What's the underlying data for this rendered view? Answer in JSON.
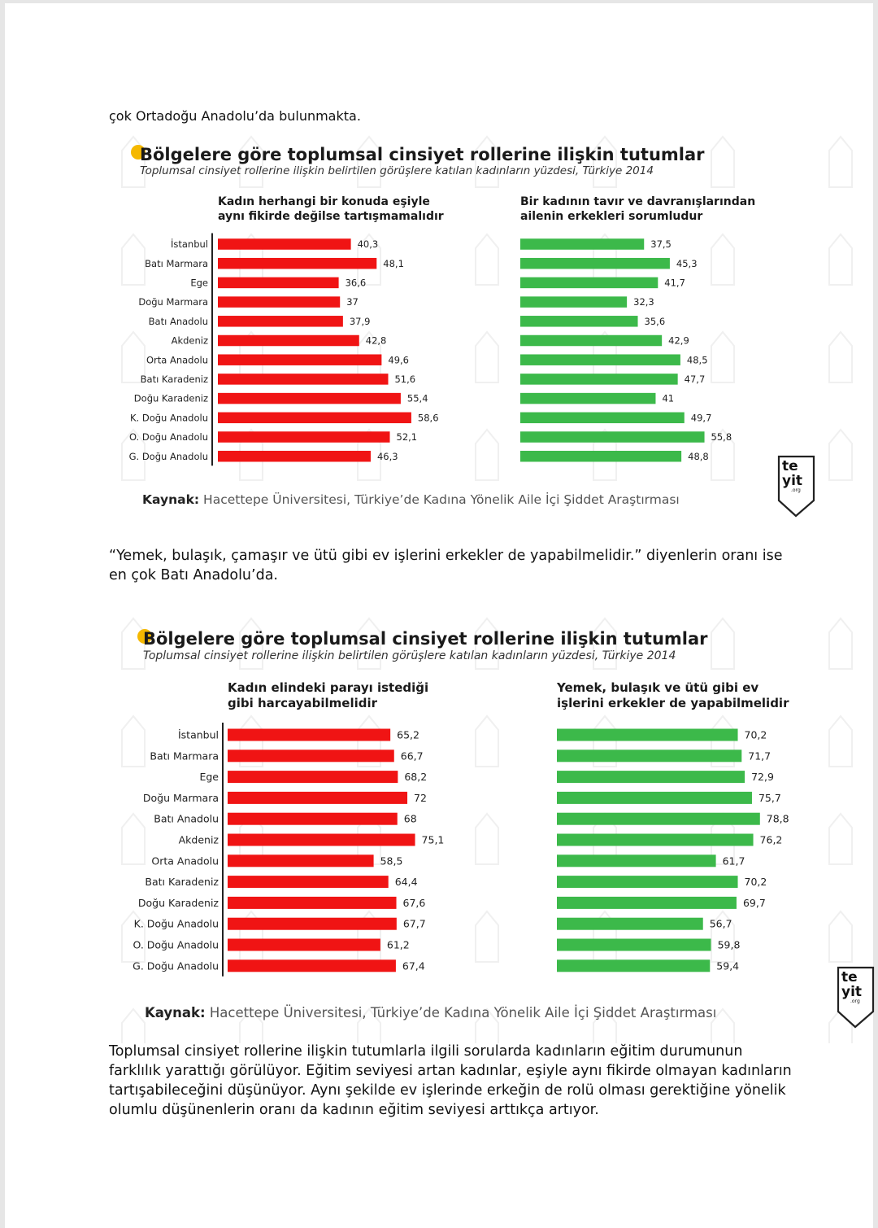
{
  "intro_line": "çok Ortadoğu Anadolu’da bulunmakta.",
  "middle_paragraph": "“Yemek, bulaşık, çamaşır ve ütü gibi ev işlerini erkekler de yapabilmelidir.” diyenlerin oranı ise en çok Batı Anadolu’da.",
  "final_paragraph": "Toplumsal cinsiyet rollerine ilişkin tutumlarla ilgili sorularda kadınların eğitim durumunun farklılık yarattığı görülüyor. Eğitim seviyesi artan kadınlar, eşiyle aynı fikirde olmayan kadınların tartışabileceğini düşünüyor. Aynı şekilde ev işlerinde erkeğin de rolü olması gerektiğine yönelik olumlu düşünenlerin oranı da kadının eğitim seviyesi arttıkça artıyor.",
  "colors": {
    "red": "#f01414",
    "green": "#3cb94a",
    "yellow": "#f5b800",
    "text": "#222222",
    "gray": "#555555"
  },
  "chart_data": [
    {
      "type": "bar",
      "orientation": "horizontal",
      "title": "Bölgelere göre toplumsal cinsiyet rollerine ilişkin tutumlar",
      "subtitle": "Toplumsal cinsiyet rollerine ilişkin belirtilen görüşlere katılan kadınların yüzdesi, Türkiye 2014",
      "categories": [
        "İstanbul",
        "Batı Marmara",
        "Ege",
        "Doğu Marmara",
        "Batı Anadolu",
        "Akdeniz",
        "Orta Anadolu",
        "Batı Karadeniz",
        "Doğu Karadeniz",
        "K. Doğu Anadolu",
        "O. Doğu Anadolu",
        "G. Doğu Anadolu"
      ],
      "series": [
        {
          "name_lines": [
            "Kadın herhangi bir konuda eşiyle",
            "aynı fikirde değilse tartışmamalıdır"
          ],
          "color": "red",
          "values": [
            40.3,
            48.1,
            36.6,
            37,
            37.9,
            42.8,
            49.6,
            51.6,
            55.4,
            58.6,
            52.1,
            46.3
          ],
          "labels": [
            "40,3",
            "48,1",
            "36,6",
            "37",
            "37,9",
            "42,8",
            "49,6",
            "51,6",
            "55,4",
            "58,6",
            "52,1",
            "46,3"
          ]
        },
        {
          "name_lines": [
            "Bir kadının tavır ve davranışlarından",
            "ailenin erkekleri sorumludur"
          ],
          "color": "green",
          "values": [
            37.5,
            45.3,
            41.7,
            32.3,
            35.6,
            42.9,
            48.5,
            47.7,
            41,
            49.7,
            55.8,
            48.8
          ],
          "labels": [
            "37,5",
            "45,3",
            "41,7",
            "32,3",
            "35,6",
            "42,9",
            "48,5",
            "47,7",
            "41",
            "49,7",
            "55,8",
            "48,8"
          ]
        }
      ],
      "source_prefix": "Kaynak:",
      "source": " Hacettepe Üniversitesi, Türkiye’de Kadına Yönelik Aile İçi Şiddet Araştırması",
      "logo": {
        "line1": "te",
        "line2": "yit",
        "line3": ".org"
      }
    },
    {
      "type": "bar",
      "orientation": "horizontal",
      "title": "Bölgelere göre toplumsal cinsiyet rollerine ilişkin tutumlar",
      "subtitle": "Toplumsal cinsiyet rollerine ilişkin belirtilen görüşlere katılan kadınların yüzdesi, Türkiye 2014",
      "categories": [
        "İstanbul",
        "Batı Marmara",
        "Ege",
        "Doğu Marmara",
        "Batı Anadolu",
        "Akdeniz",
        "Orta Anadolu",
        "Batı Karadeniz",
        "Doğu Karadeniz",
        "K. Doğu Anadolu",
        "O. Doğu Anadolu",
        "G. Doğu Anadolu"
      ],
      "series": [
        {
          "name_lines": [
            "Kadın elindeki parayı istediği",
            "gibi harcayabilmelidir"
          ],
          "color": "red",
          "values": [
            65.2,
            66.7,
            68.2,
            72,
            68,
            75.1,
            58.5,
            64.4,
            67.6,
            67.7,
            61.2,
            67.4
          ],
          "labels": [
            "65,2",
            "66,7",
            "68,2",
            "72",
            "68",
            "75,1",
            "58,5",
            "64,4",
            "67,6",
            "67,7",
            "61,2",
            "67,4"
          ]
        },
        {
          "name_lines": [
            "Yemek, bulaşık ve ütü gibi ev",
            "işlerini erkekler de yapabilmelidir"
          ],
          "color": "green",
          "values": [
            70.2,
            71.7,
            72.9,
            75.7,
            78.8,
            76.2,
            61.7,
            70.2,
            69.7,
            56.7,
            59.8,
            59.4
          ],
          "labels": [
            "70,2",
            "71,7",
            "72,9",
            "75,7",
            "78,8",
            "76,2",
            "61,7",
            "70,2",
            "69,7",
            "56,7",
            "59,8",
            "59,4"
          ]
        }
      ],
      "source_prefix": "Kaynak:",
      "source": " Hacettepe Üniversitesi, Türkiye’de Kadına Yönelik Aile İçi Şiddet Araştırması",
      "logo": {
        "line1": "te",
        "line2": "yit",
        "line3": ".org"
      }
    }
  ]
}
